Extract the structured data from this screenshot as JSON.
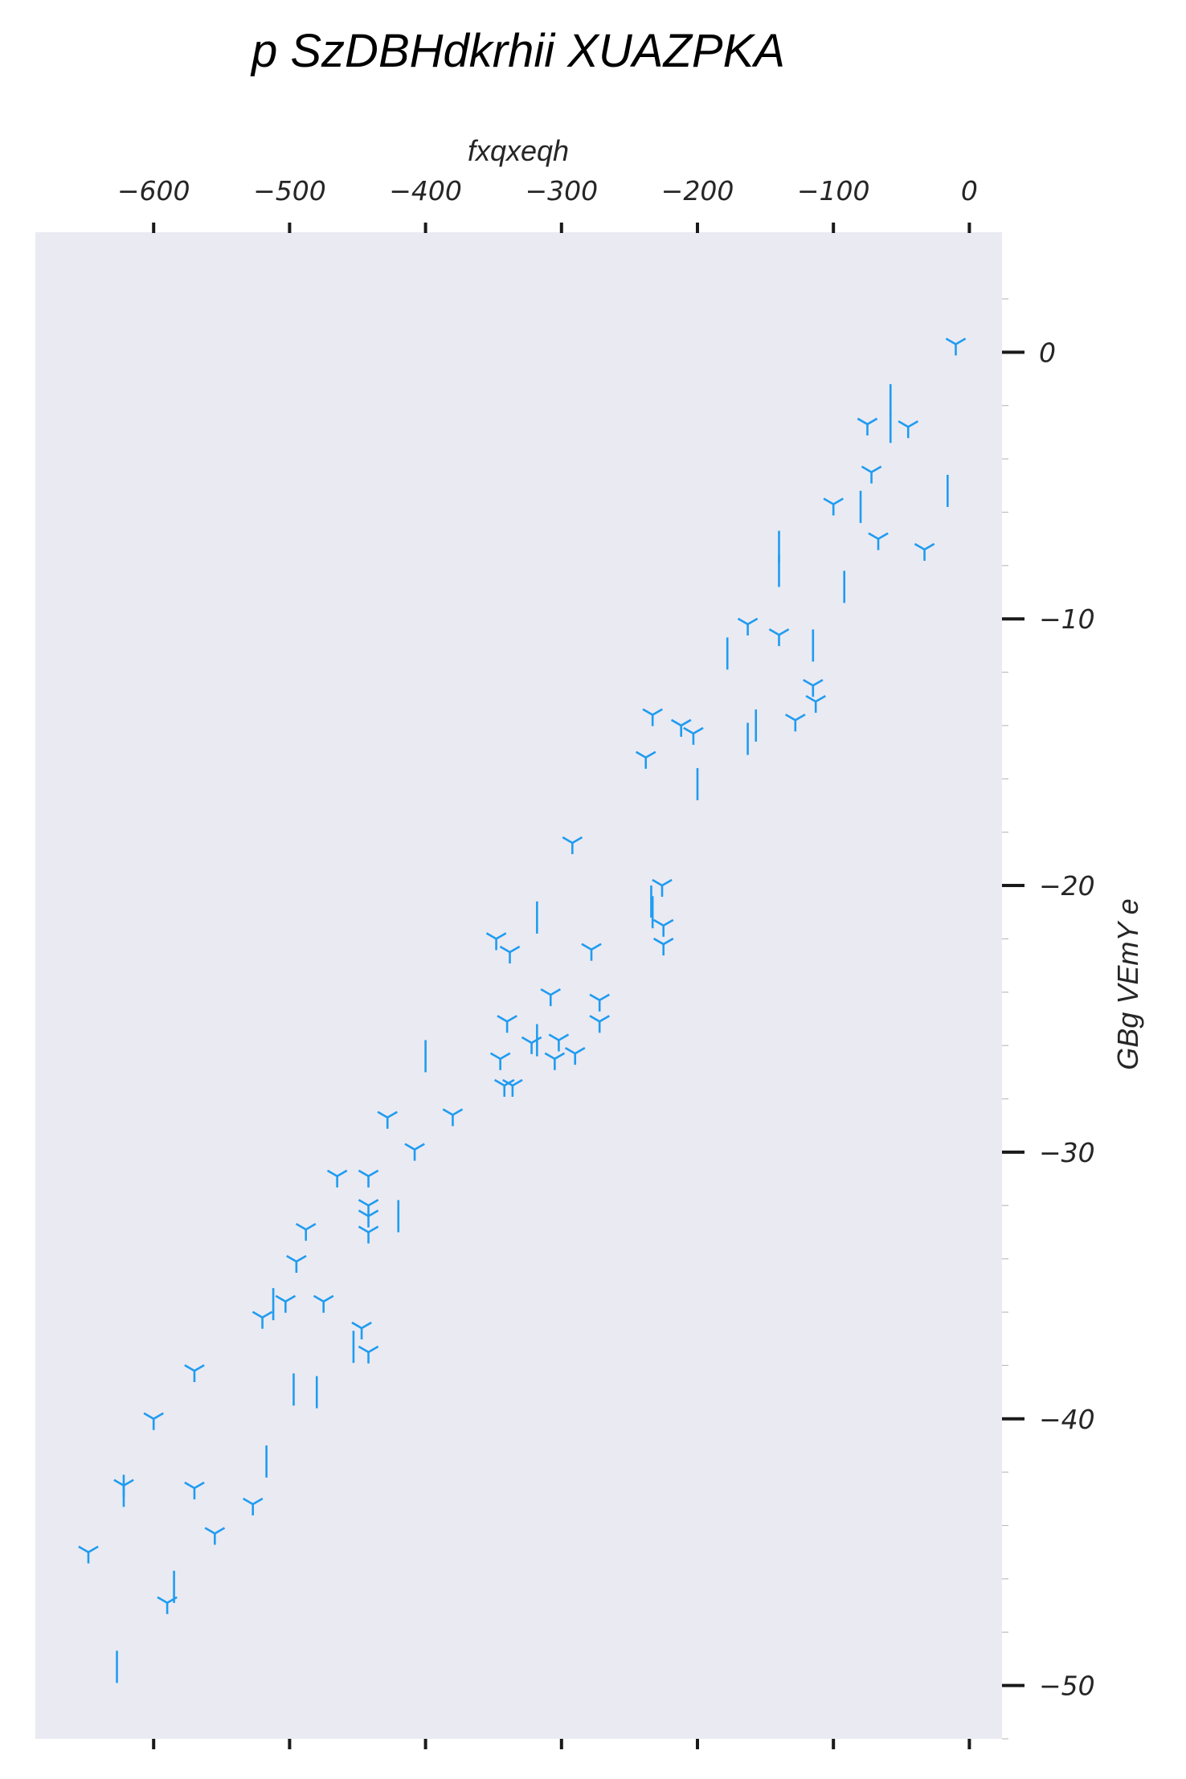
{
  "chart_data": {
    "type": "scatter",
    "title": "p SzDBHdkrhii XUAZPKA",
    "xlabel": "fxqxeqh",
    "ylabel": "GBg VEmY e",
    "xlim": [
      -687,
      24
    ],
    "ylim": [
      -52,
      4.5
    ],
    "x_axis_position": "top",
    "y_axis_position": "right",
    "grid": false,
    "background": "#eaeaf2",
    "marker_color": "#1f9cf0",
    "x_ticks": [
      -600,
      -500,
      -400,
      -300,
      -200,
      -100,
      0
    ],
    "x_tick_labels": [
      "−600",
      "−500",
      "−400",
      "−300",
      "−200",
      "−100",
      "0"
    ],
    "y_ticks": [
      0,
      -10,
      -20,
      -30,
      -40,
      -50
    ],
    "y_tick_labels": [
      "0",
      "−10",
      "−20",
      "−30",
      "−40",
      "−50"
    ],
    "series": [
      {
        "marker": "tri_down",
        "points": [
          [
            -10,
            0.3
          ],
          [
            -75,
            -2.7
          ],
          [
            -45,
            -2.8
          ],
          [
            -72,
            -4.5
          ],
          [
            -100,
            -5.7
          ],
          [
            -67,
            -7.0
          ],
          [
            -33,
            -7.4
          ],
          [
            -163,
            -10.2
          ],
          [
            -140,
            -10.6
          ],
          [
            -115,
            -12.5
          ],
          [
            -113,
            -13.1
          ],
          [
            -128,
            -13.8
          ],
          [
            -233,
            -13.6
          ],
          [
            -212,
            -14.0
          ],
          [
            -203,
            -14.3
          ],
          [
            -238,
            -15.2
          ],
          [
            -292,
            -18.4
          ],
          [
            -226,
            -20.0
          ],
          [
            -225,
            -21.5
          ],
          [
            -348,
            -22.0
          ],
          [
            -338,
            -22.5
          ],
          [
            -278,
            -22.4
          ],
          [
            -225,
            -22.2
          ],
          [
            -308,
            -24.1
          ],
          [
            -272,
            -24.3
          ],
          [
            -272,
            -25.1
          ],
          [
            -340,
            -25.1
          ],
          [
            -322,
            -25.9
          ],
          [
            -302,
            -25.8
          ],
          [
            -305,
            -26.5
          ],
          [
            -290,
            -26.3
          ],
          [
            -345,
            -26.5
          ],
          [
            -336,
            -27.5
          ],
          [
            -342,
            -27.5
          ],
          [
            -428,
            -28.7
          ],
          [
            -380,
            -28.6
          ],
          [
            -408,
            -29.9
          ],
          [
            -465,
            -30.9
          ],
          [
            -442,
            -30.9
          ],
          [
            -442,
            -32.0
          ],
          [
            -442,
            -32.4
          ],
          [
            -488,
            -32.9
          ],
          [
            -442,
            -33.0
          ],
          [
            -495,
            -34.1
          ],
          [
            -503,
            -35.6
          ],
          [
            -475,
            -35.6
          ],
          [
            -520,
            -36.2
          ],
          [
            -447,
            -36.6
          ],
          [
            -442,
            -37.5
          ],
          [
            -570,
            -38.2
          ],
          [
            -600,
            -40.0
          ],
          [
            -622,
            -42.5
          ],
          [
            -570,
            -42.6
          ],
          [
            -527,
            -43.2
          ],
          [
            -555,
            -44.3
          ],
          [
            -648,
            -45.0
          ],
          [
            -590,
            -46.9
          ]
        ]
      },
      {
        "marker": "vline",
        "points": [
          [
            -58,
            -1.8
          ],
          [
            -58,
            -2.8
          ],
          [
            -16,
            -5.2
          ],
          [
            -80,
            -5.8
          ],
          [
            -140,
            -7.3
          ],
          [
            -140,
            -8.2
          ],
          [
            -92,
            -8.8
          ],
          [
            -115,
            -11.0
          ],
          [
            -178,
            -11.3
          ],
          [
            -157,
            -14.0
          ],
          [
            -163,
            -14.5
          ],
          [
            -200,
            -16.2
          ],
          [
            -318,
            -21.2
          ],
          [
            -234,
            -20.6
          ],
          [
            -233,
            -21.0
          ],
          [
            -318,
            -25.8
          ],
          [
            -400,
            -26.4
          ],
          [
            -420,
            -32.4
          ],
          [
            -512,
            -35.7
          ],
          [
            -497,
            -38.9
          ],
          [
            -480,
            -39.0
          ],
          [
            -453,
            -37.3
          ],
          [
            -517,
            -41.6
          ],
          [
            -622,
            -42.7
          ],
          [
            -585,
            -46.3
          ],
          [
            -627,
            -49.3
          ]
        ]
      }
    ]
  }
}
